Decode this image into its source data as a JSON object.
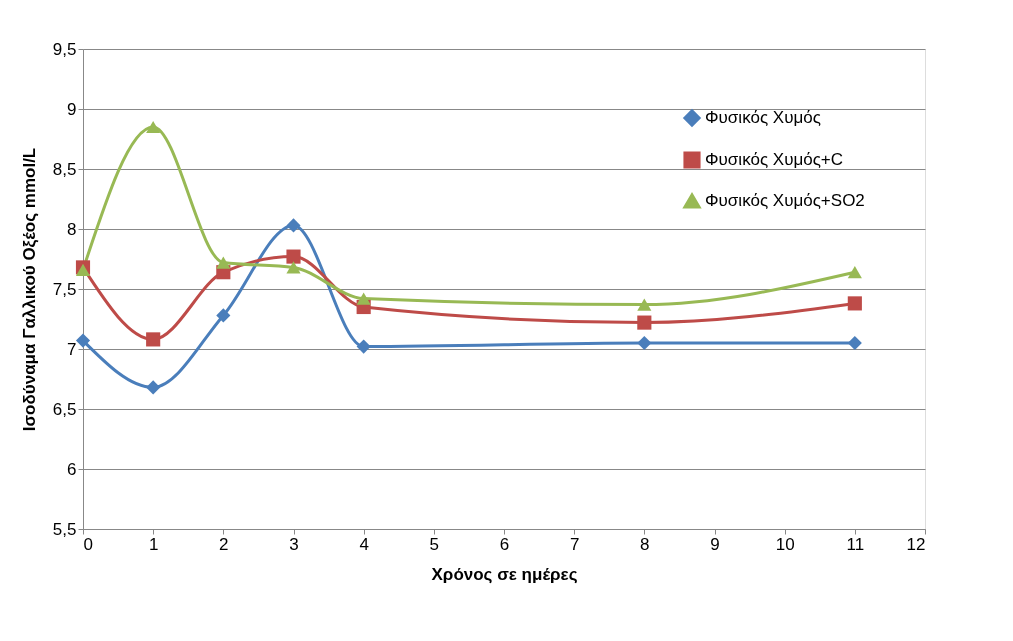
{
  "chart_data": {
    "type": "line",
    "xlabel": "Χρόνος σε ημέρες",
    "ylabel": "Ισοδύναμα Γαλλικού Οξέος mmol/L",
    "x": [
      0,
      1,
      2,
      3,
      4,
      8,
      11
    ],
    "xlim": [
      0,
      12
    ],
    "xticks": [
      0,
      1,
      2,
      3,
      4,
      5,
      6,
      7,
      8,
      9,
      10,
      11,
      12
    ],
    "ylim": [
      5.5,
      9.5
    ],
    "yticks": [
      {
        "value": 5.5,
        "label": "5,5"
      },
      6,
      {
        "value": 6.5,
        "label": "6,5"
      },
      7,
      {
        "value": 7.5,
        "label": "7,5"
      },
      8,
      {
        "value": 8.5,
        "label": "8,5"
      },
      9,
      {
        "value": 9.5,
        "label": "9,5"
      }
    ],
    "grid": "y",
    "legend": "top right",
    "line_style": "solid",
    "series": [
      {
        "name": "Φυσικός Χυμός",
        "color": "#4a7ebb",
        "marker": "diamond",
        "values": [
          7.07,
          6.68,
          7.28,
          8.03,
          7.02,
          7.05,
          7.05
        ]
      },
      {
        "name": "Φυσικός Χυμός+C",
        "color": "#be4b48",
        "marker": "square",
        "values": [
          7.68,
          7.08,
          7.64,
          7.77,
          7.35,
          7.22,
          7.38
        ]
      },
      {
        "name": "Φυσικός Χυμός+SO2",
        "color": "#98b954",
        "marker": "triangle",
        "values": [
          7.66,
          8.85,
          7.72,
          7.68,
          7.42,
          7.37,
          7.64
        ]
      }
    ]
  }
}
